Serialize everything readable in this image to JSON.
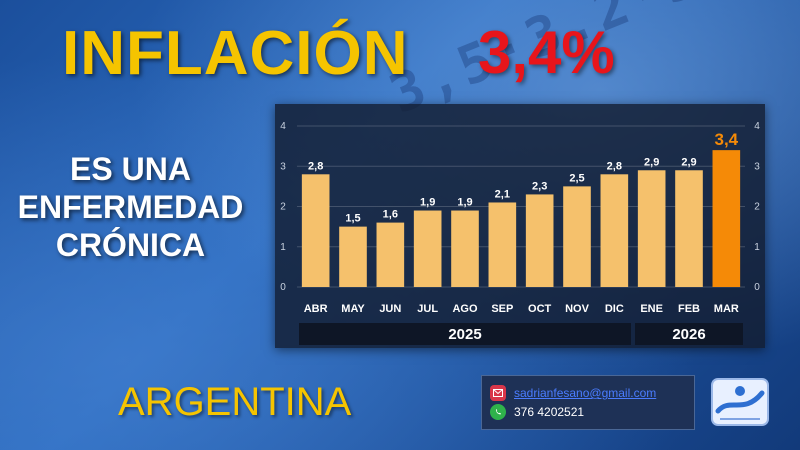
{
  "header": {
    "title": "INFLACIÓN",
    "rate": "3,4%"
  },
  "subtitle_lines": [
    "ES UNA",
    "ENFERMEDAD",
    "CRÓNICA"
  ],
  "country": "ARGENTINA",
  "contact": {
    "email": "sadrianfesano@gmail.com",
    "phone": "376 4202521"
  },
  "colors": {
    "title": "#f5c400",
    "rate": "#e8151b",
    "bar": "#f5c16c",
    "bar_highlight": "#f58a07"
  },
  "chart_data": {
    "type": "bar",
    "categories": [
      "ABR",
      "MAY",
      "JUN",
      "JUL",
      "AGO",
      "SEP",
      "OCT",
      "NOV",
      "DIC",
      "ENE",
      "FEB",
      "MAR"
    ],
    "values": [
      2.8,
      1.5,
      1.6,
      1.9,
      1.9,
      2.1,
      2.3,
      2.5,
      2.8,
      2.9,
      2.9,
      3.4
    ],
    "value_labels": [
      "2,8",
      "1,5",
      "1,6",
      "1,9",
      "1,9",
      "2,1",
      "2,3",
      "2,5",
      "2,8",
      "2,9",
      "2,9",
      "3,4"
    ],
    "highlight_index": 11,
    "yticks": [
      "0",
      "1",
      "2",
      "3",
      "4"
    ],
    "ylim": [
      0,
      4
    ],
    "grid": true,
    "groups": [
      {
        "label": "2025",
        "from": 0,
        "to": 8
      },
      {
        "label": "2026",
        "from": 9,
        "to": 11
      }
    ]
  }
}
